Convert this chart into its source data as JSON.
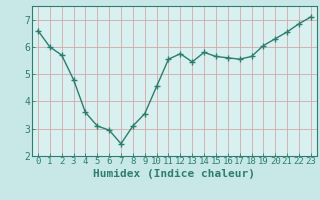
{
  "title": "",
  "xlabel": "Humidex (Indice chaleur)",
  "ylabel": "",
  "background_color": "#c8e8e8",
  "plot_bg_color": "#d8f0f0",
  "line_color": "#2e7d6e",
  "marker_color": "#2e7d6e",
  "x_values": [
    0,
    1,
    2,
    3,
    4,
    5,
    6,
    7,
    8,
    9,
    10,
    11,
    12,
    13,
    14,
    15,
    16,
    17,
    18,
    19,
    20,
    21,
    22,
    23
  ],
  "y_values": [
    6.6,
    6.0,
    5.7,
    4.8,
    3.6,
    3.1,
    2.95,
    2.45,
    3.1,
    3.55,
    4.55,
    5.55,
    5.75,
    5.45,
    5.8,
    5.65,
    5.6,
    5.55,
    5.65,
    6.05,
    6.3,
    6.55,
    6.85,
    7.1
  ],
  "xlim": [
    -0.5,
    23.5
  ],
  "ylim": [
    2.0,
    7.5
  ],
  "yticks": [
    2,
    3,
    4,
    5,
    6,
    7
  ],
  "xticks": [
    0,
    1,
    2,
    3,
    4,
    5,
    6,
    7,
    8,
    9,
    10,
    11,
    12,
    13,
    14,
    15,
    16,
    17,
    18,
    19,
    20,
    21,
    22,
    23
  ],
  "grid_color": "#b8d8d0",
  "font_color": "#2e7d6e",
  "xlabel_fontsize": 8,
  "tick_fontsize": 6.5,
  "linewidth": 1.0,
  "markersize": 4.0,
  "marker": "+"
}
